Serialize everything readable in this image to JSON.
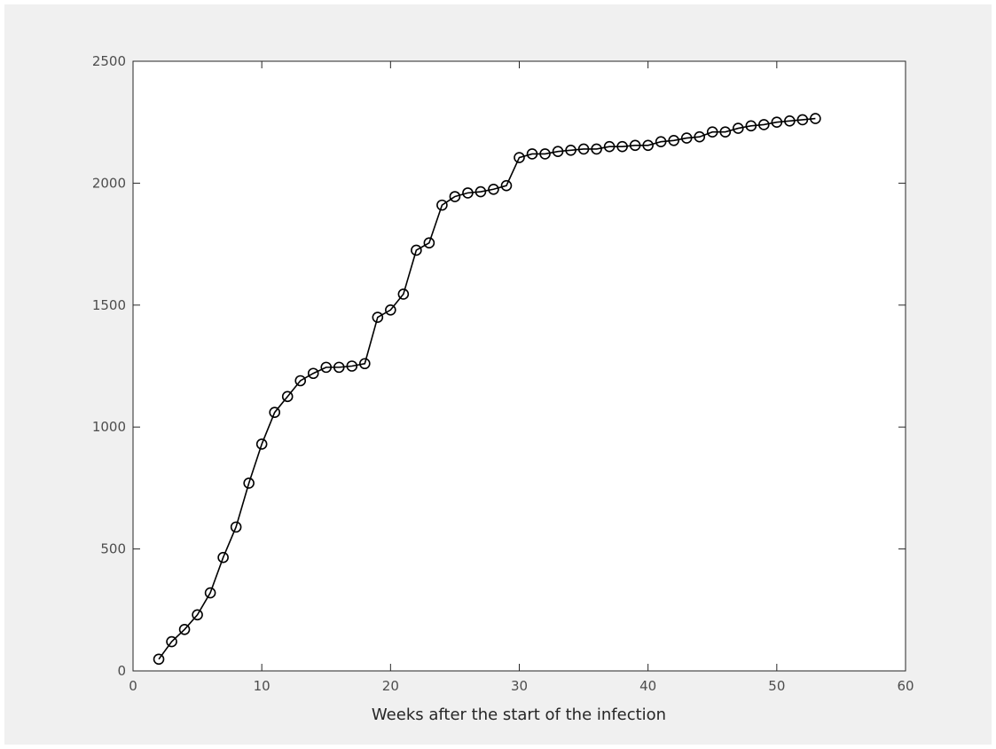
{
  "chart_data": {
    "type": "line",
    "title": "",
    "xlabel": "Weeks after the start of the infection",
    "ylabel": "",
    "xlim": [
      0,
      60
    ],
    "ylim": [
      0,
      2500
    ],
    "xticks": [
      0,
      10,
      20,
      30,
      40,
      50,
      60
    ],
    "yticks": [
      0,
      500,
      1000,
      1500,
      2000,
      2500
    ],
    "xtick_labels": [
      "0",
      "10",
      "20",
      "30",
      "40",
      "50",
      "60"
    ],
    "ytick_labels": [
      "0",
      "500",
      "1000",
      "1500",
      "2000",
      "2500"
    ],
    "grid": false,
    "legend": false,
    "marker": "circle",
    "line_color": "#000000",
    "series": [
      {
        "x": [
          2,
          3,
          4,
          5,
          6,
          7,
          8,
          9,
          10,
          11,
          12,
          13,
          14,
          15,
          16,
          17,
          18,
          19,
          20,
          21,
          22,
          23,
          24,
          25,
          26,
          27,
          28,
          29,
          30,
          31,
          32,
          33,
          34,
          35,
          36,
          37,
          38,
          39,
          40,
          41,
          42,
          43,
          44,
          45,
          46,
          47,
          48,
          49,
          50,
          51,
          52,
          53
        ],
        "values": [
          48,
          120,
          170,
          230,
          320,
          465,
          590,
          770,
          930,
          1060,
          1125,
          1190,
          1220,
          1245,
          1245,
          1250,
          1260,
          1450,
          1480,
          1545,
          1725,
          1755,
          1910,
          1945,
          1960,
          1965,
          1975,
          1990,
          2105,
          2120,
          2120,
          2130,
          2135,
          2140,
          2140,
          2150,
          2150,
          2155,
          2155,
          2170,
          2175,
          2185,
          2190,
          2210,
          2210,
          2225,
          2235,
          2240,
          2250,
          2255,
          2260,
          2265
        ]
      }
    ]
  }
}
